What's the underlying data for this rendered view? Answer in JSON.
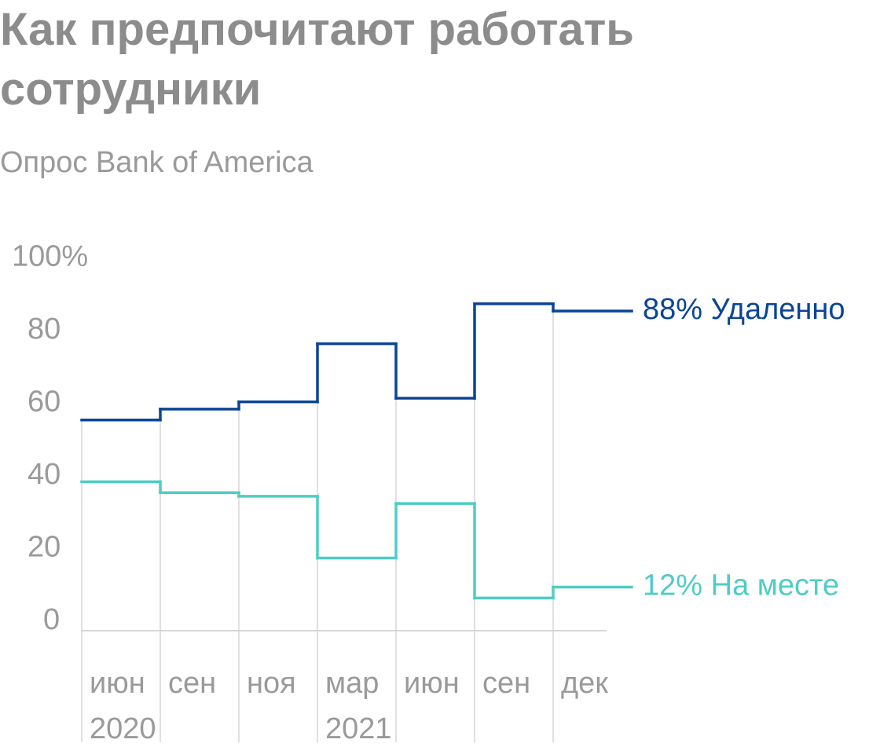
{
  "chart_data": {
    "type": "step",
    "title": "Как предпочитают работать сотрудники",
    "subtitle": "Опрос Bank of America",
    "categories": [
      "июн",
      "сен",
      "ноя",
      "мар",
      "июн",
      "сен",
      "дек"
    ],
    "years": [
      "2020",
      null,
      null,
      "2021",
      null,
      null,
      null
    ],
    "series": [
      {
        "name": "Удаленно",
        "color": "#0b4595",
        "values": [
          58,
          61,
          63,
          79,
          64,
          90,
          88
        ],
        "value_labels": [
          null,
          null,
          null,
          null,
          null,
          null,
          "88%"
        ]
      },
      {
        "name": "На месте",
        "color": "#4ecdc4",
        "values": [
          41,
          38,
          37,
          20,
          35,
          9,
          12
        ],
        "value_labels": [
          null,
          null,
          null,
          null,
          null,
          null,
          "12%"
        ]
      }
    ],
    "ylim": [
      0,
      100
    ],
    "yticks": [
      0,
      20,
      40,
      60,
      80,
      {
        "value": 100,
        "label": "100%"
      }
    ],
    "grid": false
  }
}
